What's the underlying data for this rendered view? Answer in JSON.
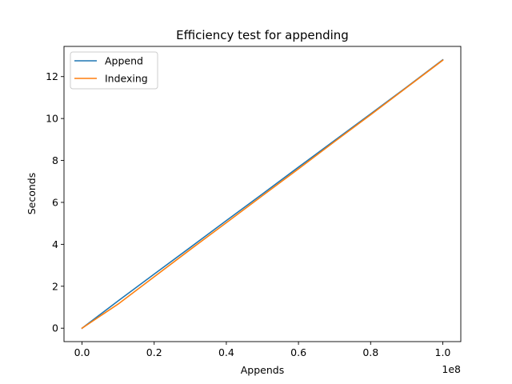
{
  "chart_data": {
    "type": "line",
    "title": "Efficiency test for appending",
    "xlabel": "Appends",
    "ylabel": "Seconds",
    "x_offset_label": "1e8",
    "x_scale": 100000000,
    "xlim": [
      -5000000,
      105000000
    ],
    "ylim": [
      -0.64,
      13.44
    ],
    "x_ticks": [
      0,
      20000000,
      40000000,
      60000000,
      80000000,
      100000000
    ],
    "x_tick_labels": [
      "0.0",
      "0.2",
      "0.4",
      "0.6",
      "0.8",
      "1.0"
    ],
    "y_ticks": [
      0,
      2,
      4,
      6,
      8,
      10,
      12
    ],
    "y_tick_labels": [
      "0",
      "2",
      "4",
      "6",
      "8",
      "10",
      "12"
    ],
    "grid": false,
    "legend_position": "top-left",
    "series": [
      {
        "name": "Append",
        "color": "#1f77b4",
        "x": [
          0,
          10000000,
          20000000,
          30000000,
          40000000,
          50000000,
          60000000,
          70000000,
          80000000,
          90000000,
          100000000
        ],
        "y": [
          0,
          1.3,
          2.58,
          3.85,
          5.13,
          6.4,
          7.68,
          8.95,
          10.22,
          11.5,
          12.8
        ]
      },
      {
        "name": "Indexing",
        "color": "#ff7f0e",
        "x": [
          0,
          10000000,
          20000000,
          30000000,
          40000000,
          50000000,
          60000000,
          70000000,
          80000000,
          90000000,
          100000000
        ],
        "y": [
          0,
          1.15,
          2.45,
          3.75,
          5.03,
          6.32,
          7.6,
          8.9,
          10.18,
          11.48,
          12.78
        ]
      }
    ]
  }
}
